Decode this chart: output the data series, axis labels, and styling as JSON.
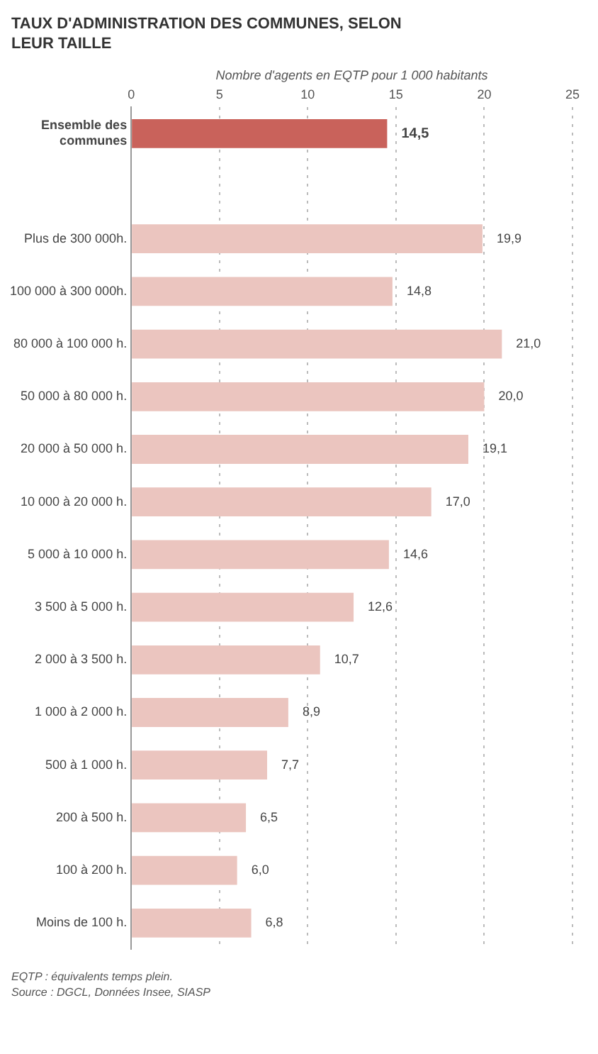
{
  "chart_data": {
    "type": "bar",
    "orientation": "horizontal",
    "title": "TAUX D'ADMINISTRATION DES COMMUNES, SELON LEUR TAILLE",
    "xlabel": "Nombre d'agents en EQTP pour 1 000 habitants",
    "categories": [
      "Ensemble des communes",
      null,
      "Plus de 300 000h.",
      "100 000 à 300 000h.",
      "80 000 à 100 000 h.",
      "50 000 à 80 000 h.",
      "20 000 à 50 000 h.",
      "10 000 à 20 000 h.",
      "5 000 à 10 000 h.",
      "3 500 à 5 000 h.",
      "2 000 à 3 500 h.",
      "1 000 à 2 000 h.",
      "500 à 1 000 h.",
      "200 à 500 h.",
      "100 à 200 h.",
      "Moins de 100 h."
    ],
    "values": [
      14.5,
      null,
      19.9,
      14.8,
      21.0,
      20.0,
      19.1,
      17.0,
      14.6,
      12.6,
      10.7,
      8.9,
      7.7,
      6.5,
      6.0,
      6.8
    ],
    "value_labels": [
      "14,5",
      null,
      "19,9",
      "14,8",
      "21,0",
      "20,0",
      "19,1",
      "17,0",
      "14,6",
      "12,6",
      "10,7",
      "8,9",
      "7,7",
      "6,5",
      "6,0",
      "6,8"
    ],
    "colors": [
      "#c9625b",
      "#ebc5bf",
      "#ebc5bf",
      "#ebc5bf",
      "#ebc5bf",
      "#ebc5bf",
      "#ebc5bf",
      "#ebc5bf",
      "#ebc5bf",
      "#ebc5bf",
      "#ebc5bf",
      "#ebc5bf",
      "#ebc5bf",
      "#ebc5bf",
      "#ebc5bf",
      "#ebc5bf"
    ],
    "xlim": [
      0,
      25
    ],
    "xticks": [
      0,
      5,
      10,
      15,
      20,
      25
    ],
    "grid": "x",
    "legend": false,
    "annotations": [
      "EQTP : équivalents temps plein.",
      "Source : DGCL, Données Insee, SIASP"
    ]
  }
}
